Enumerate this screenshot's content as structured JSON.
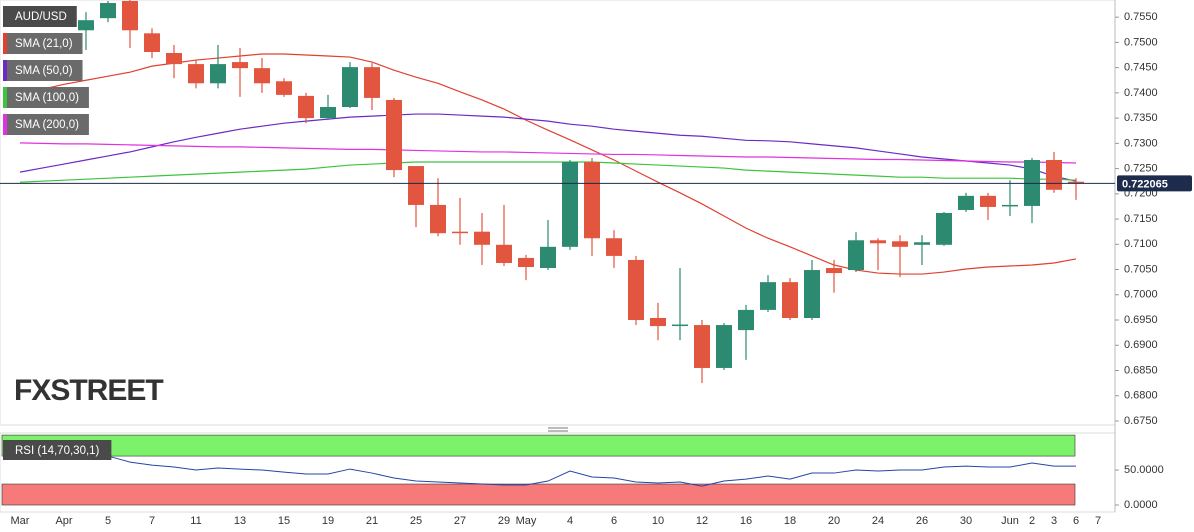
{
  "chart_data": [
    {
      "type": "candlestick",
      "symbol": "AUD/USD",
      "watermark": "FXSTREET",
      "categories": [
        "Mar",
        null,
        "Apr",
        null,
        "5",
        null,
        "7",
        null,
        "11",
        null,
        "13",
        null,
        "15",
        null,
        "19",
        null,
        "21",
        null,
        "25",
        null,
        "27",
        null,
        "29",
        "May",
        null,
        "4",
        null,
        "6",
        null,
        "10",
        null,
        "12",
        null,
        "16",
        null,
        "18",
        null,
        "20",
        null,
        "24",
        null,
        "26",
        null,
        "30",
        null,
        "Jun",
        "2",
        "3",
        "6",
        "7"
      ],
      "open": [
        null,
        null,
        null,
        0.7524,
        0.7548,
        0.7582,
        0.7518,
        0.7479,
        0.7457,
        0.7419,
        0.7461,
        0.7449,
        0.7423,
        0.7394,
        0.735,
        0.7372,
        0.7451,
        0.7386,
        0.7255,
        0.7178,
        0.7125,
        0.7125,
        0.7099,
        0.7073,
        0.7053,
        0.7095,
        0.7263,
        0.7112,
        0.7069,
        0.6954,
        0.694,
        0.694,
        0.6855,
        0.693,
        0.697,
        0.7025,
        0.6954,
        0.7053,
        0.7049,
        0.7108,
        0.7106,
        0.7099,
        0.7099,
        0.7168,
        0.7196,
        0.7176,
        0.7176,
        0.7267,
        0.7224,
        null
      ],
      "high": [
        null,
        null,
        null,
        0.756,
        0.7582,
        0.7584,
        0.7528,
        0.7495,
        0.7465,
        0.7495,
        0.7489,
        0.7469,
        0.7429,
        0.74,
        0.7396,
        0.7461,
        0.7459,
        0.739,
        0.7255,
        0.7231,
        0.7192,
        0.7162,
        0.7178,
        0.7079,
        0.7148,
        0.7267,
        0.7271,
        0.7128,
        0.7077,
        0.6984,
        0.7053,
        0.695,
        0.6944,
        0.698,
        0.7039,
        0.7033,
        0.7069,
        0.7069,
        0.7124,
        0.7112,
        0.7118,
        0.7118,
        0.7164,
        0.7202,
        0.7202,
        0.7227,
        0.7271,
        0.7283,
        0.7231,
        null
      ],
      "low": [
        null,
        null,
        null,
        0.7485,
        0.754,
        0.7489,
        0.7469,
        0.7429,
        0.7409,
        0.7409,
        0.7392,
        0.74,
        0.7392,
        0.734,
        0.7346,
        0.737,
        0.7366,
        0.7233,
        0.7134,
        0.7116,
        0.7099,
        0.7059,
        0.7057,
        0.7029,
        0.7049,
        0.7089,
        0.7077,
        0.7053,
        0.694,
        0.691,
        0.691,
        0.6825,
        0.6851,
        0.6871,
        0.6966,
        0.695,
        0.695,
        0.7004,
        0.7045,
        0.7049,
        0.7035,
        0.7059,
        0.7097,
        0.7164,
        0.7148,
        0.7156,
        0.7142,
        0.7202,
        0.7188,
        null
      ],
      "close": [
        null,
        null,
        null,
        0.7544,
        0.7578,
        0.7524,
        0.7481,
        0.7457,
        0.7419,
        0.7457,
        0.7449,
        0.7419,
        0.7396,
        0.735,
        0.7372,
        0.7451,
        0.739,
        0.7247,
        0.7178,
        0.7122,
        0.7124,
        0.7099,
        0.7063,
        0.7055,
        0.7095,
        0.7263,
        0.7112,
        0.7077,
        0.695,
        0.6938,
        0.6941,
        0.6855,
        0.694,
        0.697,
        0.7025,
        0.6954,
        0.7049,
        0.7043,
        0.7108,
        0.7102,
        0.7095,
        0.7104,
        0.7162,
        0.7196,
        0.7174,
        0.7178,
        0.7267,
        0.7208,
        0.7221,
        null
      ],
      "up_color": "#2b8a6f",
      "down_color": "#e2553f",
      "series": [
        {
          "name": "SMA (21,0)",
          "color": "#e0412f",
          "values": [
            0.74,
            0.7407,
            0.7417,
            0.7425,
            0.7433,
            0.7441,
            0.7453,
            0.7459,
            0.7465,
            0.7469,
            0.7473,
            0.7477,
            0.7477,
            0.7475,
            0.7473,
            0.7471,
            0.7461,
            0.7445,
            0.7431,
            0.7419,
            0.7402,
            0.7386,
            0.7368,
            0.7346,
            0.7326,
            0.7307,
            0.7287,
            0.7267,
            0.7245,
            0.7223,
            0.7202,
            0.718,
            0.7156,
            0.7132,
            0.7112,
            0.7095,
            0.7077,
            0.7059,
            0.7049,
            0.7043,
            0.7041,
            0.7041,
            0.7045,
            0.7051,
            0.7055,
            0.7057,
            0.7059,
            0.7063,
            0.7071,
            null
          ]
        },
        {
          "name": "SMA (50,0)",
          "color": "#6a2bc4",
          "values": [
            0.7243,
            0.7251,
            0.7259,
            0.7267,
            0.7275,
            0.7283,
            0.7293,
            0.7303,
            0.7312,
            0.732,
            0.7328,
            0.7334,
            0.734,
            0.7344,
            0.7348,
            0.7352,
            0.7354,
            0.7356,
            0.7358,
            0.7358,
            0.7356,
            0.7354,
            0.7352,
            0.7348,
            0.7344,
            0.7338,
            0.7334,
            0.7328,
            0.7324,
            0.732,
            0.7316,
            0.7314,
            0.731,
            0.7306,
            0.7305,
            0.7303,
            0.7299,
            0.7295,
            0.7291,
            0.7285,
            0.7279,
            0.7273,
            0.7269,
            0.7265,
            0.7261,
            0.7257,
            0.7249,
            0.7235,
            0.7225,
            null
          ]
        },
        {
          "name": "SMA (100,0)",
          "color": "#3cc43c",
          "values": [
            0.7223,
            0.7225,
            0.7227,
            0.7229,
            0.7231,
            0.7233,
            0.7235,
            0.7237,
            0.7239,
            0.7241,
            0.7243,
            0.7245,
            0.7247,
            0.7249,
            0.7253,
            0.7257,
            0.7259,
            0.7261,
            0.7263,
            0.7263,
            0.7263,
            0.7263,
            0.7263,
            0.7263,
            0.7263,
            0.7263,
            0.7263,
            0.7261,
            0.7259,
            0.7257,
            0.7255,
            0.7253,
            0.7251,
            0.7247,
            0.7245,
            0.7243,
            0.7241,
            0.7239,
            0.7237,
            0.7235,
            0.7233,
            0.7233,
            0.7231,
            0.7231,
            0.7231,
            0.7231,
            0.7229,
            0.7229,
            0.7227,
            null
          ]
        },
        {
          "name": "SMA (200,0)",
          "color": "#e032e0",
          "values": [
            0.7301,
            0.73,
            0.7299,
            0.7299,
            0.7298,
            0.7297,
            0.7296,
            0.7295,
            0.7294,
            0.7293,
            0.7293,
            0.7292,
            0.7291,
            0.729,
            0.7289,
            0.7288,
            0.7288,
            0.7287,
            0.7286,
            0.7285,
            0.7284,
            0.7283,
            0.7283,
            0.7282,
            0.7281,
            0.728,
            0.7279,
            0.7278,
            0.7278,
            0.7277,
            0.7276,
            0.7275,
            0.7274,
            0.7273,
            0.7273,
            0.7272,
            0.7271,
            0.727,
            0.7269,
            0.7268,
            0.7268,
            0.7267,
            0.7266,
            0.7265,
            0.7264,
            0.7263,
            0.7263,
            0.7262,
            0.7261,
            null
          ]
        }
      ],
      "last_price": 0.722065,
      "last_price_color": "#1d2b4c",
      "ylim": [
        0.6742,
        0.7584
      ],
      "yticks": [
        {
          "value": 0.755,
          "label": "0.7550"
        },
        {
          "value": 0.75,
          "label": "0.7500"
        },
        {
          "value": 0.745,
          "label": "0.7450"
        },
        {
          "value": 0.74,
          "label": "0.7400"
        },
        {
          "value": 0.735,
          "label": "0.7350"
        },
        {
          "value": 0.73,
          "label": "0.7300"
        },
        {
          "value": 0.725,
          "label": "0.7250"
        },
        {
          "value": 0.72,
          "label": "0.7200"
        },
        {
          "value": 0.715,
          "label": "0.7150"
        },
        {
          "value": 0.71,
          "label": "0.7100"
        },
        {
          "value": 0.705,
          "label": "0.7050"
        },
        {
          "value": 0.7,
          "label": "0.7000"
        },
        {
          "value": 0.695,
          "label": "0.6950"
        },
        {
          "value": 0.69,
          "label": "0.6900"
        },
        {
          "value": 0.685,
          "label": "0.6850"
        },
        {
          "value": 0.68,
          "label": "0.6800"
        },
        {
          "value": 0.675,
          "label": "0.6750"
        }
      ]
    },
    {
      "type": "line",
      "title": "RSI (14,70,30,1)",
      "series": [
        {
          "name": "RSI",
          "color": "#2743a8",
          "values": [
            70.0,
            68.6,
            68.6,
            67.1,
            70.0,
            61.4,
            57.1,
            54.3,
            50.0,
            52.9,
            51.4,
            50.0,
            47.1,
            44.3,
            44.3,
            51.4,
            45.7,
            38.6,
            34.3,
            32.9,
            31.4,
            30.0,
            28.6,
            28.6,
            34.3,
            48.6,
            40.0,
            38.6,
            32.9,
            31.4,
            32.9,
            27.1,
            34.3,
            37.1,
            41.4,
            37.1,
            45.7,
            45.7,
            50.0,
            48.6,
            50.0,
            50.0,
            54.3,
            55.7,
            54.3,
            54.3,
            60.0,
            55.7,
            55.7,
            null
          ]
        }
      ],
      "bands": [
        {
          "from": 70,
          "to": 100,
          "color": "#7cf26a"
        },
        {
          "from": 0,
          "to": 30,
          "color": "#f77a7a"
        }
      ],
      "ylim": [
        -10,
        103
      ],
      "yticks": [
        {
          "value": 50,
          "label": "50.0000"
        },
        {
          "value": 0,
          "label": "0.0000"
        }
      ]
    }
  ]
}
